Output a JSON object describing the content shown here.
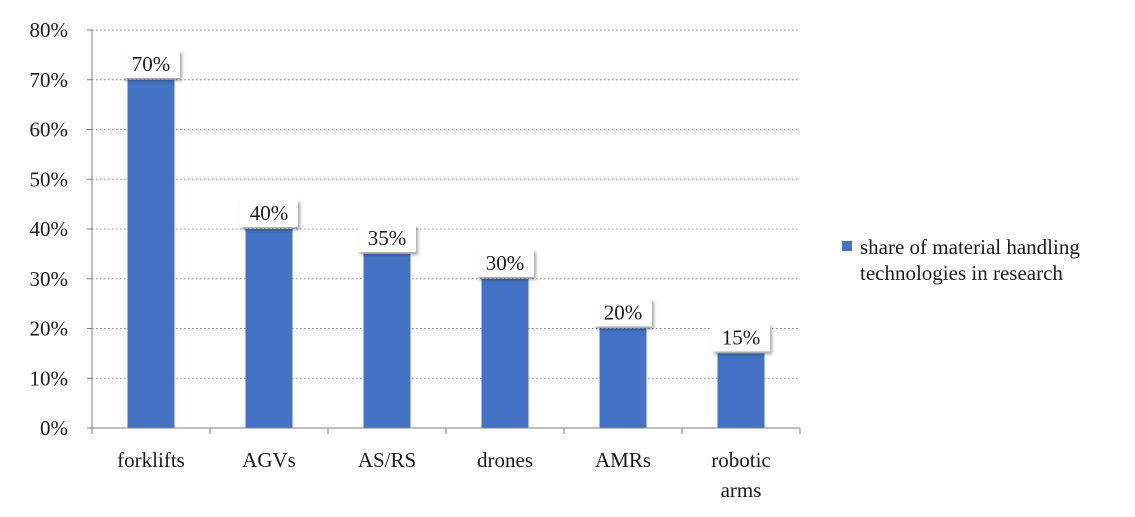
{
  "chart_data": {
    "type": "bar",
    "title": "",
    "xlabel": "",
    "ylabel": "",
    "categories": [
      "forklifts",
      "AGVs",
      "AS/RS",
      "drones",
      "AMRs",
      "robotic arms"
    ],
    "category_lines": [
      [
        "forklifts"
      ],
      [
        "AGVs"
      ],
      [
        "AS/RS"
      ],
      [
        "drones"
      ],
      [
        "AMRs"
      ],
      [
        "robotic",
        "arms"
      ]
    ],
    "series": [
      {
        "name": "share of material handling technologies in research",
        "values": [
          70,
          40,
          35,
          30,
          20,
          15
        ],
        "labels": [
          "70%",
          "40%",
          "35%",
          "30%",
          "20%",
          "15%"
        ],
        "color": "#4472C4"
      }
    ],
    "ylim": [
      0,
      80
    ],
    "yticks": [
      0,
      10,
      20,
      30,
      40,
      50,
      60,
      70,
      80
    ],
    "ytick_labels": [
      "0%",
      "10%",
      "20%",
      "30%",
      "40%",
      "50%",
      "60%",
      "70%",
      "80%"
    ],
    "grid": "dotted horizontal",
    "legend_position": "right",
    "data_labels": "boxed, above bars"
  }
}
